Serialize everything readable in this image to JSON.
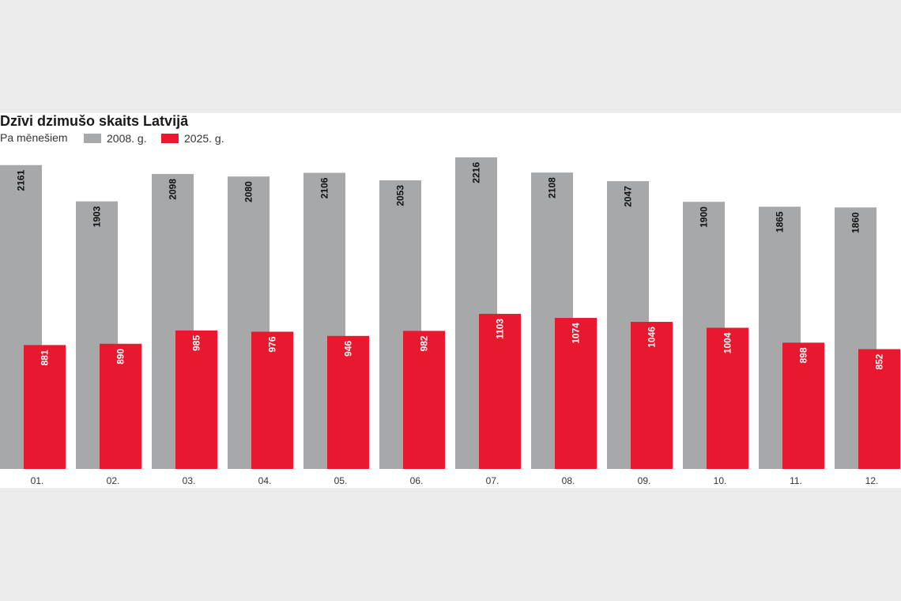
{
  "chart_data": {
    "type": "bar",
    "title": "Dzīvi dzimušo skaits Latvijā",
    "subtitle": "Pa mēnešiem",
    "categories": [
      "01.",
      "02.",
      "03.",
      "04.",
      "05.",
      "06.",
      "07.",
      "08.",
      "09.",
      "10.",
      "11.",
      "12."
    ],
    "series": [
      {
        "name": "2008. g.",
        "color": "#a7a8aa",
        "values": [
          2161,
          1903,
          2098,
          2080,
          2106,
          2053,
          2216,
          2108,
          2047,
          1900,
          1865,
          1860
        ]
      },
      {
        "name": "2025. g.",
        "color": "#e8182e",
        "values": [
          881,
          890,
          985,
          976,
          946,
          982,
          1103,
          1074,
          1046,
          1004,
          898,
          852
        ]
      }
    ],
    "ylim": [
      0,
      2216
    ],
    "grid": false,
    "legend_position": "top-left",
    "data_labels": "vertical inside bars"
  }
}
